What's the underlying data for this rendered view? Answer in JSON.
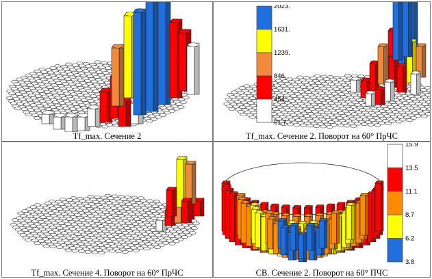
{
  "panels": [
    {
      "caption": "Tf_max. Сечение 2"
    },
    {
      "caption": "Tf_max. Сечение 2. Поворот на 60° ПрЧС"
    },
    {
      "caption": "Tf_max. Сечение 4. Поворот на 60° ПрЧС"
    },
    {
      "caption": "CB. Сечение 2. Поворот на 60° ПЧС"
    }
  ],
  "legend_tf": {
    "labels": [
      "2023.",
      "1631.",
      "1239.",
      "846.",
      "454.",
      "61.7"
    ],
    "colors": [
      "#1f6fde",
      "#ffff00",
      "#f28a3c",
      "#ff0000",
      "#ffffff"
    ]
  },
  "legend_cb": {
    "labels": [
      "15.9",
      "13.5",
      "11.1",
      "8.7",
      "6.2",
      "3.8"
    ],
    "colors": [
      "#ffffff",
      "#ff0000",
      "#ff8c00",
      "#ffff00",
      "#1f6fde"
    ]
  }
}
